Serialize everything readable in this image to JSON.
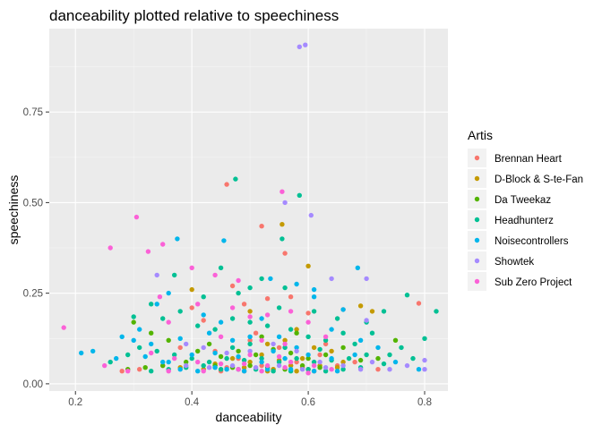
{
  "chart_data": {
    "type": "scatter",
    "title": "danceability plotted relative to speechiness",
    "xlabel": "danceability",
    "ylabel": "speechiness",
    "xlim": [
      0.155,
      0.84
    ],
    "ylim": [
      -0.02,
      0.98
    ],
    "x_ticks": [
      0.2,
      0.4,
      0.6,
      0.8
    ],
    "x_tick_labels": [
      "0.2",
      "0.4",
      "0.6",
      "0.8"
    ],
    "y_ticks": [
      0.0,
      0.25,
      0.5,
      0.75
    ],
    "y_tick_labels": [
      "0.00",
      "0.25",
      "0.50",
      "0.75"
    ],
    "grid": true,
    "legend": {
      "title": "Artis",
      "position": "right"
    },
    "series": [
      {
        "name": "Brennan Heart",
        "color": "#F8766D",
        "points": [
          [
            0.46,
            0.55
          ],
          [
            0.52,
            0.435
          ],
          [
            0.56,
            0.36
          ],
          [
            0.4,
            0.21
          ],
          [
            0.42,
            0.175
          ],
          [
            0.47,
            0.27
          ],
          [
            0.49,
            0.22
          ],
          [
            0.53,
            0.235
          ],
          [
            0.57,
            0.24
          ],
          [
            0.6,
            0.195
          ],
          [
            0.66,
            0.205
          ],
          [
            0.79,
            0.222
          ],
          [
            0.5,
            0.12
          ],
          [
            0.55,
            0.1
          ],
          [
            0.44,
            0.09
          ],
          [
            0.48,
            0.07
          ],
          [
            0.52,
            0.05
          ],
          [
            0.58,
            0.06
          ],
          [
            0.62,
            0.08
          ],
          [
            0.65,
            0.05
          ],
          [
            0.38,
            0.1
          ],
          [
            0.35,
            0.05
          ],
          [
            0.31,
            0.04
          ],
          [
            0.28,
            0.035
          ],
          [
            0.54,
            0.04
          ],
          [
            0.46,
            0.045
          ],
          [
            0.59,
            0.045
          ],
          [
            0.63,
            0.11
          ],
          [
            0.68,
            0.06
          ],
          [
            0.72,
            0.04
          ],
          [
            0.51,
            0.14
          ],
          [
            0.57,
            0.05
          ],
          [
            0.61,
            0.035
          ],
          [
            0.45,
            0.035
          ],
          [
            0.49,
            0.035
          ]
        ]
      },
      {
        "name": "D-Block & S-te-Fan",
        "color": "#C49A00",
        "points": [
          [
            0.555,
            0.44
          ],
          [
            0.6,
            0.325
          ],
          [
            0.4,
            0.26
          ],
          [
            0.5,
            0.2
          ],
          [
            0.58,
            0.15
          ],
          [
            0.53,
            0.11
          ],
          [
            0.56,
            0.12
          ],
          [
            0.61,
            0.1
          ],
          [
            0.64,
            0.09
          ],
          [
            0.52,
            0.08
          ],
          [
            0.47,
            0.07
          ],
          [
            0.59,
            0.07
          ],
          [
            0.55,
            0.065
          ],
          [
            0.5,
            0.06
          ],
          [
            0.44,
            0.055
          ],
          [
            0.57,
            0.05
          ],
          [
            0.62,
            0.05
          ],
          [
            0.66,
            0.06
          ],
          [
            0.69,
            0.215
          ],
          [
            0.71,
            0.2
          ],
          [
            0.54,
            0.04
          ],
          [
            0.49,
            0.045
          ],
          [
            0.6,
            0.04
          ],
          [
            0.65,
            0.045
          ],
          [
            0.42,
            0.04
          ],
          [
            0.38,
            0.045
          ],
          [
            0.58,
            0.035
          ],
          [
            0.53,
            0.035
          ]
        ]
      },
      {
        "name": "Da Tweekaz",
        "color": "#53B400",
        "points": [
          [
            0.3,
            0.17
          ],
          [
            0.33,
            0.14
          ],
          [
            0.36,
            0.12
          ],
          [
            0.41,
            0.09
          ],
          [
            0.45,
            0.075
          ],
          [
            0.48,
            0.09
          ],
          [
            0.51,
            0.08
          ],
          [
            0.54,
            0.095
          ],
          [
            0.57,
            0.085
          ],
          [
            0.6,
            0.07
          ],
          [
            0.63,
            0.08
          ],
          [
            0.66,
            0.1
          ],
          [
            0.69,
            0.065
          ],
          [
            0.72,
            0.07
          ],
          [
            0.75,
            0.12
          ],
          [
            0.44,
            0.05
          ],
          [
            0.47,
            0.045
          ],
          [
            0.5,
            0.05
          ],
          [
            0.53,
            0.045
          ],
          [
            0.56,
            0.04
          ],
          [
            0.59,
            0.05
          ],
          [
            0.62,
            0.045
          ],
          [
            0.39,
            0.06
          ],
          [
            0.35,
            0.05
          ],
          [
            0.32,
            0.045
          ],
          [
            0.29,
            0.04
          ],
          [
            0.43,
            0.11
          ],
          [
            0.58,
            0.14
          ],
          [
            0.52,
            0.13
          ]
        ]
      },
      {
        "name": "Headhunterz",
        "color": "#00C094",
        "points": [
          [
            0.475,
            0.565
          ],
          [
            0.585,
            0.52
          ],
          [
            0.555,
            0.4
          ],
          [
            0.5,
            0.265
          ],
          [
            0.56,
            0.265
          ],
          [
            0.52,
            0.29
          ],
          [
            0.45,
            0.32
          ],
          [
            0.37,
            0.3
          ],
          [
            0.42,
            0.24
          ],
          [
            0.48,
            0.25
          ],
          [
            0.55,
            0.21
          ],
          [
            0.61,
            0.2
          ],
          [
            0.65,
            0.18
          ],
          [
            0.7,
            0.17
          ],
          [
            0.73,
            0.2
          ],
          [
            0.77,
            0.245
          ],
          [
            0.82,
            0.2
          ],
          [
            0.8,
            0.125
          ],
          [
            0.76,
            0.1
          ],
          [
            0.71,
            0.14
          ],
          [
            0.68,
            0.11
          ],
          [
            0.74,
            0.08
          ],
          [
            0.78,
            0.07
          ],
          [
            0.3,
            0.185
          ],
          [
            0.33,
            0.22
          ],
          [
            0.35,
            0.18
          ],
          [
            0.38,
            0.2
          ],
          [
            0.41,
            0.16
          ],
          [
            0.44,
            0.15
          ],
          [
            0.47,
            0.18
          ],
          [
            0.5,
            0.17
          ],
          [
            0.53,
            0.16
          ],
          [
            0.57,
            0.15
          ],
          [
            0.6,
            0.13
          ],
          [
            0.63,
            0.12
          ],
          [
            0.66,
            0.14
          ],
          [
            0.26,
            0.06
          ],
          [
            0.29,
            0.08
          ],
          [
            0.31,
            0.1
          ],
          [
            0.34,
            0.09
          ],
          [
            0.37,
            0.08
          ],
          [
            0.4,
            0.07
          ],
          [
            0.43,
            0.06
          ],
          [
            0.46,
            0.07
          ],
          [
            0.49,
            0.065
          ],
          [
            0.52,
            0.07
          ],
          [
            0.55,
            0.06
          ],
          [
            0.58,
            0.07
          ],
          [
            0.61,
            0.06
          ],
          [
            0.64,
            0.065
          ],
          [
            0.67,
            0.07
          ],
          [
            0.7,
            0.08
          ],
          [
            0.73,
            0.055
          ],
          [
            0.45,
            0.04
          ],
          [
            0.48,
            0.04
          ],
          [
            0.51,
            0.04
          ],
          [
            0.54,
            0.035
          ],
          [
            0.57,
            0.035
          ],
          [
            0.6,
            0.04
          ],
          [
            0.63,
            0.035
          ],
          [
            0.66,
            0.04
          ],
          [
            0.69,
            0.045
          ],
          [
            0.42,
            0.05
          ],
          [
            0.39,
            0.045
          ],
          [
            0.36,
            0.04
          ],
          [
            0.33,
            0.035
          ],
          [
            0.5,
            0.11
          ],
          [
            0.56,
            0.1
          ],
          [
            0.62,
            0.095
          ],
          [
            0.47,
            0.1
          ]
        ]
      },
      {
        "name": "Noisecontrollers",
        "color": "#00B6EB",
        "points": [
          [
            0.375,
            0.4
          ],
          [
            0.455,
            0.395
          ],
          [
            0.535,
            0.29
          ],
          [
            0.58,
            0.275
          ],
          [
            0.61,
            0.26
          ],
          [
            0.685,
            0.32
          ],
          [
            0.61,
            0.24
          ],
          [
            0.66,
            0.205
          ],
          [
            0.34,
            0.22
          ],
          [
            0.36,
            0.25
          ],
          [
            0.42,
            0.19
          ],
          [
            0.45,
            0.17
          ],
          [
            0.52,
            0.18
          ],
          [
            0.31,
            0.15
          ],
          [
            0.28,
            0.13
          ],
          [
            0.3,
            0.12
          ],
          [
            0.33,
            0.11
          ],
          [
            0.38,
            0.125
          ],
          [
            0.43,
            0.14
          ],
          [
            0.5,
            0.13
          ],
          [
            0.55,
            0.13
          ],
          [
            0.64,
            0.15
          ],
          [
            0.69,
            0.12
          ],
          [
            0.72,
            0.1
          ],
          [
            0.75,
            0.06
          ],
          [
            0.79,
            0.04
          ],
          [
            0.21,
            0.085
          ],
          [
            0.23,
            0.09
          ],
          [
            0.27,
            0.07
          ],
          [
            0.32,
            0.075
          ],
          [
            0.36,
            0.06
          ],
          [
            0.4,
            0.08
          ],
          [
            0.44,
            0.085
          ],
          [
            0.48,
            0.075
          ],
          [
            0.52,
            0.06
          ],
          [
            0.56,
            0.07
          ],
          [
            0.6,
            0.08
          ],
          [
            0.64,
            0.07
          ],
          [
            0.68,
            0.08
          ],
          [
            0.46,
            0.04
          ],
          [
            0.49,
            0.035
          ],
          [
            0.53,
            0.04
          ],
          [
            0.57,
            0.04
          ],
          [
            0.61,
            0.035
          ],
          [
            0.65,
            0.035
          ],
          [
            0.44,
            0.045
          ],
          [
            0.41,
            0.035
          ],
          [
            0.38,
            0.04
          ],
          [
            0.35,
            0.06
          ],
          [
            0.58,
            0.1
          ],
          [
            0.54,
            0.09
          ],
          [
            0.47,
            0.12
          ]
        ]
      },
      {
        "name": "Showtek",
        "color": "#A58AFF",
        "points": [
          [
            0.585,
            0.93
          ],
          [
            0.595,
            0.935
          ],
          [
            0.605,
            0.465
          ],
          [
            0.56,
            0.5
          ],
          [
            0.64,
            0.29
          ],
          [
            0.7,
            0.29
          ],
          [
            0.7,
            0.175
          ],
          [
            0.71,
            0.06
          ],
          [
            0.8,
            0.065
          ],
          [
            0.8,
            0.04
          ],
          [
            0.77,
            0.05
          ],
          [
            0.74,
            0.04
          ],
          [
            0.34,
            0.3
          ],
          [
            0.39,
            0.11
          ],
          [
            0.42,
            0.1
          ],
          [
            0.46,
            0.085
          ],
          [
            0.5,
            0.09
          ],
          [
            0.54,
            0.11
          ],
          [
            0.58,
            0.09
          ],
          [
            0.62,
            0.06
          ],
          [
            0.66,
            0.05
          ],
          [
            0.69,
            0.04
          ],
          [
            0.47,
            0.05
          ],
          [
            0.51,
            0.045
          ],
          [
            0.55,
            0.05
          ],
          [
            0.59,
            0.04
          ],
          [
            0.63,
            0.045
          ],
          [
            0.43,
            0.045
          ],
          [
            0.39,
            0.05
          ]
        ]
      },
      {
        "name": "Sub Zero Project",
        "color": "#FB61D7",
        "points": [
          [
            0.18,
            0.155
          ],
          [
            0.26,
            0.375
          ],
          [
            0.305,
            0.46
          ],
          [
            0.325,
            0.365
          ],
          [
            0.35,
            0.385
          ],
          [
            0.4,
            0.32
          ],
          [
            0.345,
            0.24
          ],
          [
            0.36,
            0.17
          ],
          [
            0.41,
            0.22
          ],
          [
            0.44,
            0.3
          ],
          [
            0.48,
            0.285
          ],
          [
            0.555,
            0.53
          ],
          [
            0.47,
            0.21
          ],
          [
            0.5,
            0.185
          ],
          [
            0.53,
            0.19
          ],
          [
            0.57,
            0.2
          ],
          [
            0.6,
            0.17
          ],
          [
            0.63,
            0.13
          ],
          [
            0.45,
            0.13
          ],
          [
            0.52,
            0.12
          ],
          [
            0.56,
            0.11
          ],
          [
            0.33,
            0.085
          ],
          [
            0.37,
            0.07
          ],
          [
            0.41,
            0.06
          ],
          [
            0.45,
            0.055
          ],
          [
            0.49,
            0.055
          ],
          [
            0.53,
            0.05
          ],
          [
            0.57,
            0.06
          ],
          [
            0.61,
            0.05
          ],
          [
            0.25,
            0.05
          ],
          [
            0.29,
            0.035
          ],
          [
            0.48,
            0.04
          ],
          [
            0.52,
            0.035
          ],
          [
            0.56,
            0.045
          ],
          [
            0.6,
            0.03
          ],
          [
            0.64,
            0.04
          ],
          [
            0.42,
            0.035
          ],
          [
            0.36,
            0.035
          ],
          [
            0.5,
            0.08
          ],
          [
            0.55,
            0.075
          ]
        ]
      }
    ]
  }
}
